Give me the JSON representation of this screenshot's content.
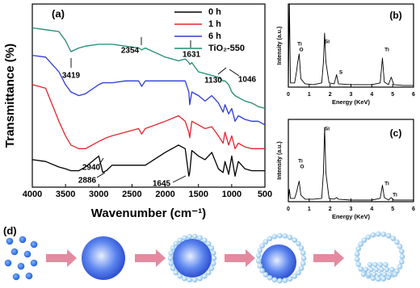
{
  "chart_data": [
    {
      "type": "line",
      "panel_label": "(a)",
      "x_label": "Wavenumber (cm⁻¹)",
      "y_label": "Transmittance (%)",
      "x": [
        4000,
        3800,
        3600,
        3500,
        3419,
        3300,
        3200,
        3000,
        2940,
        2886,
        2800,
        2600,
        2400,
        2354,
        2300,
        2000,
        1800,
        1700,
        1645,
        1631,
        1600,
        1500,
        1400,
        1300,
        1200,
        1130,
        1100,
        1046,
        1000,
        950,
        900,
        800,
        700,
        600,
        500
      ],
      "xlim": [
        4000,
        500
      ],
      "xticks": [
        4000,
        3500,
        3000,
        2500,
        2000,
        1500,
        1000,
        500
      ],
      "ylim": [
        0,
        100
      ],
      "legend": "upper right",
      "series": [
        {
          "name": "0 h",
          "color": "#000000",
          "values": [
            15,
            14,
            11,
            10,
            9,
            9,
            11,
            17,
            8,
            9,
            12,
            12,
            12,
            12,
            12,
            19,
            23,
            21,
            6,
            8,
            20,
            17,
            15,
            19,
            10,
            8,
            14,
            7,
            17,
            6,
            14,
            10,
            9,
            9,
            9
          ]
        },
        {
          "name": "1 h",
          "color": "#e3232b",
          "values": [
            56,
            54,
            36,
            28,
            23,
            21,
            21,
            25,
            26,
            27,
            28,
            30,
            32,
            29,
            32,
            36,
            39,
            36,
            30,
            27,
            36,
            34,
            32,
            33,
            28,
            24,
            30,
            23,
            28,
            21,
            24,
            22,
            21,
            21,
            21
          ]
        },
        {
          "name": "6 h",
          "color": "#2b3bd8",
          "values": [
            72,
            71,
            63,
            56,
            52,
            50,
            51,
            56,
            57,
            57,
            57,
            58,
            58,
            55,
            58,
            58,
            58,
            58,
            52,
            45,
            52,
            50,
            47,
            50,
            46,
            41,
            45,
            40,
            43,
            36,
            39,
            37,
            36,
            36,
            34
          ]
        },
        {
          "name": "TiO₂-550",
          "color": "#1f8c70",
          "values": [
            87,
            86,
            85,
            80,
            74,
            76,
            77,
            78,
            78,
            78,
            78,
            77,
            76,
            75,
            76,
            71,
            69,
            70,
            68,
            67,
            68,
            63,
            62,
            61,
            60,
            58,
            58,
            56,
            52,
            50,
            49,
            47,
            46,
            44,
            43
          ]
        }
      ],
      "annotations": [
        "3419",
        "2354",
        "1631",
        "1130",
        "1046",
        "2940",
        "2886",
        "1645"
      ]
    },
    {
      "type": "line",
      "panel_label": "(b)",
      "x_label": "Energy (KeV)",
      "y_label": "Intensity (a.u.)",
      "x": [
        0,
        0.05,
        0.1,
        0.3,
        0.4,
        0.45,
        0.52,
        0.6,
        0.8,
        1.2,
        1.6,
        1.68,
        1.74,
        1.8,
        1.95,
        2.2,
        2.31,
        2.4,
        3,
        4,
        4.4,
        4.51,
        4.6,
        4.8,
        4.93,
        5.05,
        5.5,
        6
      ],
      "xlim": [
        0,
        6
      ],
      "xticks": [
        0,
        1,
        2,
        3,
        4,
        5,
        6
      ],
      "ylim": [
        0,
        100
      ],
      "series": [
        {
          "color": "#000000",
          "values": [
            2,
            100,
            5,
            5,
            20,
            30,
            40,
            10,
            4,
            3,
            5,
            30,
            65,
            30,
            5,
            4,
            15,
            4,
            3,
            3,
            5,
            35,
            6,
            3,
            12,
            3,
            2,
            2
          ]
        }
      ],
      "annotations": [
        "Ti",
        "O",
        "Si",
        "S",
        "Ti"
      ]
    },
    {
      "type": "line",
      "panel_label": "(c)",
      "x_label": "Energy (KeV)",
      "y_label": "Intensity (a.u.)",
      "x": [
        0,
        0.05,
        0.1,
        0.3,
        0.4,
        0.45,
        0.52,
        0.6,
        0.8,
        1.2,
        1.6,
        1.68,
        1.74,
        1.8,
        1.95,
        2.2,
        2.31,
        2.4,
        3,
        4,
        4.4,
        4.51,
        4.6,
        4.8,
        4.93,
        5.05,
        5.5,
        6
      ],
      "xlim": [
        0,
        6
      ],
      "xticks": [
        0,
        1,
        2,
        3,
        4,
        5,
        6
      ],
      "ylim": [
        0,
        100
      ],
      "series": [
        {
          "color": "#000000",
          "values": [
            2,
            15,
            4,
            4,
            12,
            18,
            25,
            8,
            3,
            3,
            4,
            35,
            90,
            35,
            4,
            3,
            5,
            3,
            2,
            2,
            4,
            20,
            5,
            2,
            5,
            2,
            2,
            2
          ]
        }
      ],
      "annotations": [
        "Ti",
        "O",
        "Si",
        "Ti",
        "Ti"
      ]
    }
  ],
  "diagram": {
    "panel_label": "(d)"
  }
}
